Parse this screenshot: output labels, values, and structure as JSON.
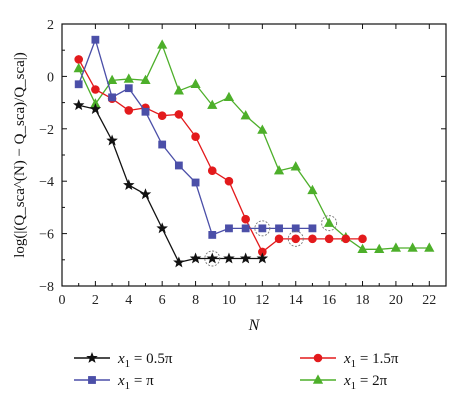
{
  "chart_data": {
    "type": "line",
    "xlabel": "N",
    "ylabel": "log(|(Q_sca^(N) − Q_sca)/Q_sca|)",
    "xlim": [
      0,
      23
    ],
    "ylim": [
      -8,
      2
    ],
    "x_ticks": [
      "0",
      "2",
      "4",
      "6",
      "8",
      "10",
      "12",
      "14",
      "16",
      "18",
      "20",
      "22"
    ],
    "y_ticks": [
      "2",
      "0",
      "−2",
      "−4",
      "−6",
      "−8"
    ],
    "grid": false,
    "legend_position": "bottom",
    "series": [
      {
        "name": "x1 = 0.5π",
        "legend_main": "x",
        "legend_sub": "1",
        "legend_rest": " = 0.5π",
        "color": "#111111",
        "marker": "star",
        "x": [
          1,
          2,
          3,
          4,
          5,
          6,
          7,
          8,
          9,
          10,
          11,
          12
        ],
        "y": [
          -1.1,
          -1.25,
          -2.45,
          -4.15,
          -4.5,
          -5.8,
          -7.1,
          -6.95,
          -6.95,
          -6.95,
          -6.95,
          -6.95
        ]
      },
      {
        "name": "x1 = π",
        "legend_main": "x",
        "legend_sub": "1",
        "legend_rest": " = π",
        "color": "#4b4fa8",
        "marker": "square",
        "x": [
          1,
          2,
          3,
          4,
          5,
          6,
          7,
          8,
          9,
          10,
          11,
          12,
          13,
          14,
          15
        ],
        "y": [
          -0.3,
          1.4,
          -0.8,
          -0.45,
          -1.35,
          -2.6,
          -3.4,
          -4.05,
          -6.05,
          -5.8,
          -5.8,
          -5.8,
          -5.8,
          -5.8,
          -5.8
        ]
      },
      {
        "name": "x1 = 1.5π",
        "legend_main": "x",
        "legend_sub": "1",
        "legend_rest": " = 1.5π",
        "color": "#e31a1c",
        "marker": "circle",
        "x": [
          1,
          2,
          3,
          4,
          5,
          6,
          7,
          8,
          9,
          10,
          11,
          12,
          13,
          14,
          15,
          16,
          17,
          18
        ],
        "y": [
          0.65,
          -0.5,
          -0.85,
          -1.3,
          -1.2,
          -1.5,
          -1.45,
          -2.3,
          -3.6,
          -4.0,
          -5.45,
          -6.7,
          -6.2,
          -6.2,
          -6.2,
          -6.2,
          -6.2,
          -6.2
        ]
      },
      {
        "name": "x1 = 2π",
        "legend_main": "x",
        "legend_sub": "1",
        "legend_rest": " = 2π",
        "color": "#4daf2a",
        "marker": "triangle",
        "x": [
          1,
          2,
          3,
          4,
          5,
          6,
          7,
          8,
          9,
          10,
          11,
          12,
          13,
          14,
          15,
          16,
          17,
          18,
          19,
          20,
          21,
          22
        ],
        "y": [
          0.3,
          -1.05,
          -0.15,
          -0.1,
          -0.15,
          1.2,
          -0.55,
          -0.3,
          -1.1,
          -0.8,
          -1.5,
          -2.05,
          -3.6,
          -3.45,
          -4.35,
          -5.6,
          -6.15,
          -6.6,
          -6.6,
          -6.55,
          -6.55,
          -6.55
        ]
      }
    ],
    "highlighted_points": [
      {
        "series": "x1 = 0.5π",
        "x": 9,
        "y": -6.95
      },
      {
        "series": "x1 = π",
        "x": 12,
        "y": -5.8
      },
      {
        "series": "x1 = 1.5π",
        "x": 14,
        "y": -6.2
      },
      {
        "series": "x1 = 2π",
        "x": 16,
        "y": -5.6
      }
    ]
  }
}
